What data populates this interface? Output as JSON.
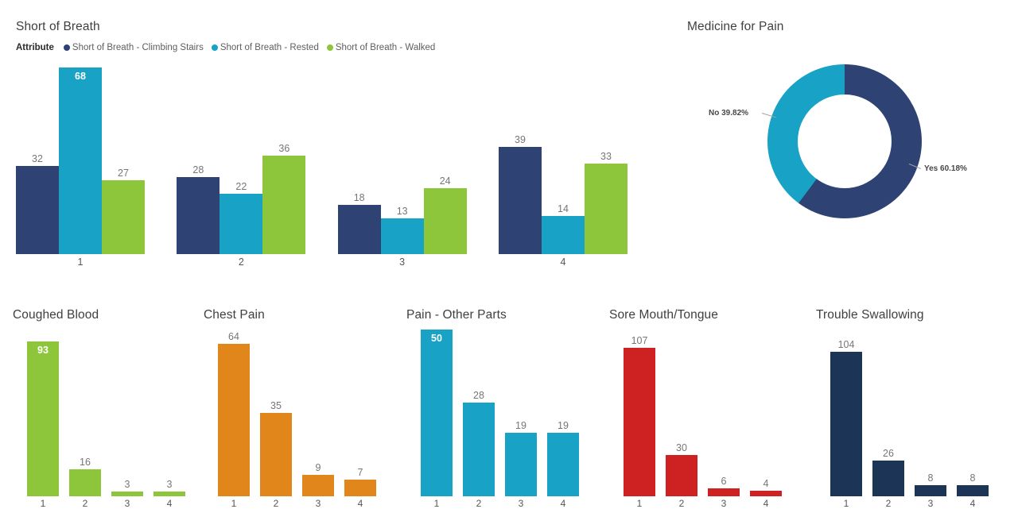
{
  "page": {
    "background": "#ffffff"
  },
  "chart_data": [
    {
      "id": "short_of_breath",
      "type": "bar",
      "title": "Short of Breath",
      "legend_title": "Attribute",
      "legend_position": "top",
      "grid": false,
      "data_labels": true,
      "categories": [
        "1",
        "2",
        "3",
        "4"
      ],
      "series": [
        {
          "name": "Short of Breath - Climbing Stairs",
          "color": "#2E4374",
          "values": [
            32,
            28,
            18,
            39
          ]
        },
        {
          "name": "Short of Breath - Rested",
          "color": "#17A2C6",
          "values": [
            68,
            22,
            13,
            14
          ]
        },
        {
          "name": "Short of Breath - Walked",
          "color": "#8DC63B",
          "values": [
            27,
            36,
            24,
            33
          ]
        }
      ],
      "ylim": [
        0,
        68
      ]
    },
    {
      "id": "medicine_for_pain",
      "type": "pie",
      "donut": true,
      "title": "Medicine for Pain",
      "slices": [
        {
          "label": "Yes",
          "value_pct": 60.18,
          "color": "#2E4374",
          "annotation": "Yes 60.18%"
        },
        {
          "label": "No",
          "value_pct": 39.82,
          "color": "#17A2C6",
          "annotation": "No 39.82%"
        }
      ]
    },
    {
      "id": "coughed_blood",
      "type": "bar",
      "title": "Coughed Blood",
      "color": "#8DC63B",
      "categories": [
        "1",
        "2",
        "3",
        "4"
      ],
      "values": [
        93,
        16,
        3,
        3
      ],
      "ylim": [
        0,
        100
      ],
      "grid": false,
      "data_labels": true
    },
    {
      "id": "chest_pain",
      "type": "bar",
      "title": "Chest Pain",
      "color": "#E0861B",
      "categories": [
        "1",
        "2",
        "3",
        "4"
      ],
      "values": [
        64,
        35,
        9,
        7
      ],
      "ylim": [
        0,
        70
      ],
      "grid": false,
      "data_labels": true
    },
    {
      "id": "pain_other_parts",
      "type": "bar",
      "title": "Pain - Other Parts",
      "color": "#17A2C6",
      "categories": [
        "1",
        "2",
        "3",
        "4"
      ],
      "values": [
        50,
        28,
        19,
        19
      ],
      "ylim": [
        0,
        50
      ],
      "grid": false,
      "data_labels": true
    },
    {
      "id": "sore_mouth_tongue",
      "type": "bar",
      "title": "Sore Mouth/Tongue",
      "color": "#CE2222",
      "categories": [
        "1",
        "2",
        "3",
        "4"
      ],
      "values": [
        107,
        30,
        6,
        4
      ],
      "ylim": [
        0,
        120
      ],
      "grid": false,
      "data_labels": true
    },
    {
      "id": "trouble_swallowing",
      "type": "bar",
      "title": "Trouble Swallowing",
      "color": "#1C3557",
      "categories": [
        "1",
        "2",
        "3",
        "4"
      ],
      "values": [
        104,
        26,
        8,
        8
      ],
      "ylim": [
        0,
        120
      ],
      "grid": false,
      "data_labels": true
    }
  ]
}
